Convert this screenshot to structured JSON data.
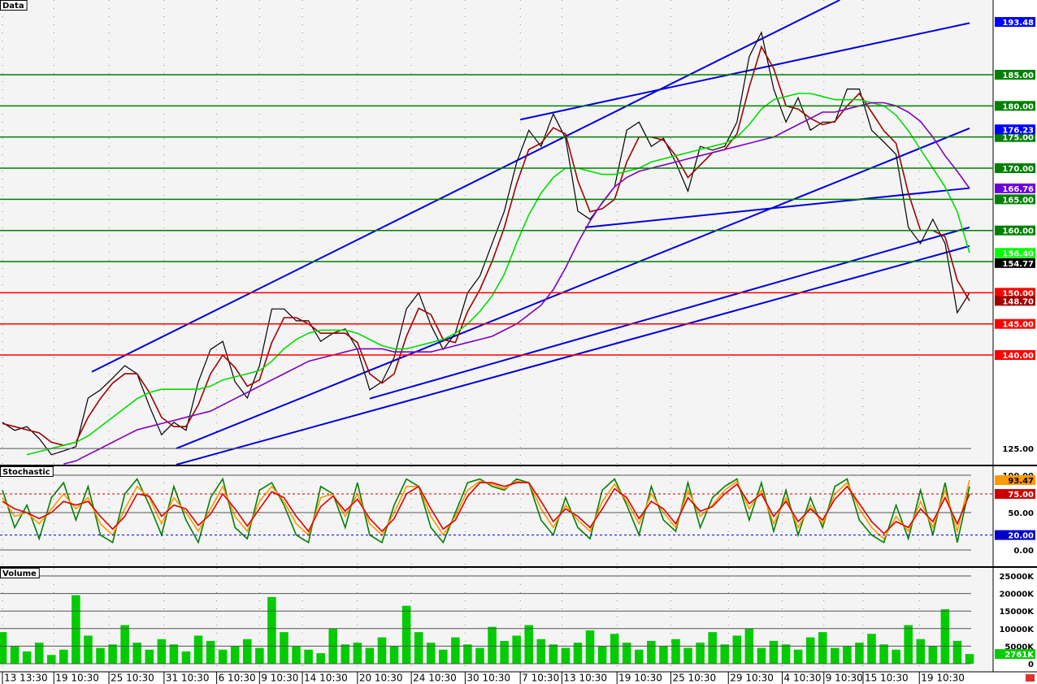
{
  "chart_data": [
    {
      "type": "line",
      "title": "Data",
      "xlim": [
        0,
        79
      ],
      "ylim": [
        122.4,
        197
      ],
      "yticks": [
        {
          "value": 185,
          "label": "185.00",
          "color": "#008000"
        },
        {
          "value": 180,
          "label": "180.00",
          "color": "#008000"
        },
        {
          "value": 175,
          "label": "175.00",
          "color": "#008000"
        },
        {
          "value": 170,
          "label": "170.00",
          "color": "#008000"
        },
        {
          "value": 165,
          "label": "165.00",
          "color": "#008000"
        },
        {
          "value": 160,
          "label": "160.00",
          "color": "#008000"
        },
        {
          "value": 150,
          "label": "150.00",
          "color": "#ff0000"
        },
        {
          "value": 145,
          "label": "145.00",
          "color": "#ff0000"
        },
        {
          "value": 140,
          "label": "140.00",
          "color": "#ff0000"
        },
        {
          "value": 125,
          "label": "125.00"
        }
      ],
      "levels": [
        {
          "value": 155,
          "color": "#008000"
        }
      ],
      "markers": [
        {
          "value": 193.48,
          "color": "#0000ff"
        },
        {
          "value": 176.23,
          "color": "#0000ff"
        },
        {
          "value": 166.76,
          "color": "#6a00e0"
        },
        {
          "value": 156.4,
          "label": "156.40",
          "color": "#00ff00"
        },
        {
          "value": 154.77,
          "color": "#000000"
        },
        {
          "value": 148.7,
          "label": "148.70",
          "color": "#a00000"
        }
      ],
      "trendlines": [
        {
          "x": [
            7.3,
            68.4
          ],
          "values": [
            137.3,
            197
          ]
        },
        {
          "x": [
            42.3,
            79
          ],
          "values": [
            177.8,
            193.3
          ]
        },
        {
          "x": [
            14.2,
            79
          ],
          "values": [
            125,
            176.4
          ]
        },
        {
          "x": [
            47.6,
            79
          ],
          "values": [
            160.5,
            166.8
          ]
        },
        {
          "x": [
            30,
            79
          ],
          "values": [
            133,
            160.5
          ]
        },
        {
          "x": [
            14.2,
            79
          ],
          "values": [
            122.4,
            157.5
          ]
        }
      ],
      "trend_color": "#0000dd",
      "series": [
        {
          "color": "#000000",
          "values": [
            129.2,
            127.9,
            128.5,
            126.6,
            124,
            124.6,
            125.3,
            133.1,
            134.4,
            136.3,
            138.3,
            137,
            131.8,
            127.2,
            129.2,
            127.9,
            135.7,
            140.9,
            142.2,
            135.7,
            133.1,
            138.3,
            147.4,
            147.4,
            145.5,
            145.5,
            142.2,
            143.5,
            144.2,
            140.9,
            134.4,
            135.7,
            139.6,
            147.4,
            150,
            144.8,
            140.9,
            143.5,
            150,
            152.7,
            157.9,
            163.1,
            170.9,
            176.1,
            173.5,
            178.7,
            174.8,
            163.1,
            161.8,
            164.4,
            167,
            176.1,
            177.4,
            173.5,
            174.8,
            170.9,
            166.3,
            173.5,
            172.9,
            173.5,
            177.4,
            187.9,
            191.8,
            182.7,
            177.4,
            181.3,
            176.1,
            177.4,
            177.4,
            182.7,
            182.7,
            176.1,
            174.2,
            172.2,
            160.5,
            157.9,
            161.8,
            157.9,
            146.8,
            150
          ]
        },
        {
          "color": "#a00000",
          "values": [
            129,
            128.5,
            128,
            127.5,
            126,
            125.5,
            126,
            130,
            133,
            135.5,
            137,
            137,
            134,
            130,
            128.5,
            128.5,
            132,
            137,
            140,
            138,
            135,
            136,
            142,
            146,
            146,
            145,
            143.5,
            143.5,
            143.5,
            142,
            137,
            135.5,
            137,
            143,
            147.5,
            146.5,
            142.5,
            142,
            147,
            150.5,
            155,
            160.5,
            167.5,
            173,
            174,
            176.5,
            175.5,
            168,
            163,
            163.5,
            165,
            171,
            175,
            175,
            174.5,
            172,
            168.5,
            170.5,
            172.5,
            173,
            175.5,
            183,
            189.5,
            186,
            180,
            179.5,
            178,
            177,
            177.5,
            180,
            182,
            179,
            176,
            174,
            166,
            160,
            160,
            159,
            152,
            148.7
          ]
        },
        {
          "color": "#00dd00",
          "values": [
            null,
            null,
            124,
            124.5,
            125,
            125.5,
            126,
            127,
            128.5,
            130,
            131.5,
            133,
            134,
            134.5,
            134.5,
            134.5,
            134.5,
            135,
            136,
            136.5,
            137,
            137.5,
            139,
            141,
            142.5,
            143.5,
            144,
            144,
            144,
            143.5,
            142.5,
            141.5,
            141,
            141,
            141.5,
            142,
            142.5,
            143.5,
            145,
            147,
            149.5,
            153,
            158,
            162.5,
            166,
            168.5,
            170,
            170,
            169.5,
            169,
            169,
            169.5,
            170,
            171,
            171.5,
            172,
            172.5,
            173,
            173.5,
            174,
            175,
            177,
            179.5,
            181,
            181.5,
            182,
            182,
            181.5,
            181,
            181,
            181,
            180.5,
            180,
            178.5,
            176,
            173,
            170,
            167,
            163,
            156.4
          ]
        },
        {
          "color": "#8000c0",
          "values": [
            null,
            null,
            null,
            null,
            null,
            122.5,
            123,
            124,
            125,
            126,
            127,
            128,
            128.5,
            129,
            129.5,
            130,
            130.5,
            131,
            132,
            133,
            134,
            135,
            136,
            137,
            138,
            139,
            139.5,
            140,
            140.5,
            141,
            141,
            141,
            140.5,
            140.5,
            140.5,
            140.5,
            141,
            141.5,
            142,
            142.5,
            143,
            144,
            145,
            146.5,
            148,
            150.5,
            154,
            158,
            161.5,
            164.5,
            167,
            168.5,
            169.5,
            170,
            170.5,
            171,
            171.5,
            172,
            172.5,
            173,
            173.5,
            174,
            174.5,
            175,
            176,
            177,
            178,
            179,
            179,
            179.5,
            180,
            180.5,
            180.5,
            180,
            179,
            177.5,
            175,
            172,
            169.5,
            166.76
          ]
        }
      ]
    },
    {
      "type": "line",
      "title": "Stochastic",
      "xlim": [
        0,
        79
      ],
      "ylim": [
        -21.7,
        112
      ],
      "yticks": [
        {
          "value": 100,
          "label": "100.00"
        },
        {
          "value": 50,
          "label": "50.00"
        },
        {
          "value": 0,
          "label": "0.00"
        }
      ],
      "markers": [
        {
          "value": 93.47,
          "color": "#ff9900"
        },
        {
          "value": 75,
          "label": "75.00",
          "color": "#cc0000",
          "dashed": true
        },
        {
          "value": 20,
          "label": "20.00",
          "color": "#0000cc",
          "dashed": true
        }
      ],
      "series": [
        {
          "color": "#008000",
          "values": [
            80,
            30,
            60,
            15,
            70,
            90,
            40,
            85,
            20,
            10,
            75,
            95,
            60,
            20,
            85,
            40,
            10,
            70,
            95,
            30,
            15,
            80,
            90,
            60,
            20,
            10,
            85,
            75,
            30,
            90,
            20,
            10,
            60,
            95,
            85,
            30,
            10,
            50,
            90,
            95,
            85,
            80,
            95,
            90,
            40,
            20,
            70,
            30,
            15,
            80,
            95,
            60,
            20,
            85,
            40,
            25,
            90,
            30,
            70,
            85,
            95,
            40,
            90,
            25,
            80,
            20,
            70,
            30,
            85,
            95,
            40,
            20,
            10,
            60,
            15,
            80,
            20,
            90,
            10,
            85
          ]
        },
        {
          "color": "#ff9900",
          "values": [
            70,
            45,
            50,
            35,
            55,
            75,
            55,
            70,
            35,
            20,
            55,
            85,
            70,
            35,
            70,
            50,
            25,
            55,
            85,
            45,
            25,
            65,
            85,
            65,
            35,
            20,
            70,
            75,
            45,
            75,
            35,
            20,
            50,
            85,
            85,
            45,
            20,
            45,
            80,
            92,
            88,
            82,
            92,
            90,
            55,
            30,
            60,
            40,
            25,
            65,
            88,
            65,
            35,
            75,
            50,
            30,
            80,
            45,
            60,
            80,
            92,
            55,
            80,
            35,
            70,
            30,
            60,
            35,
            75,
            90,
            55,
            30,
            15,
            45,
            25,
            65,
            30,
            80,
            25,
            93.47
          ]
        },
        {
          "color": "#dd0000",
          "values": [
            65,
            55,
            50,
            42,
            50,
            65,
            60,
            65,
            45,
            28,
            45,
            75,
            72,
            45,
            60,
            55,
            33,
            48,
            75,
            55,
            32,
            55,
            78,
            70,
            45,
            25,
            58,
            72,
            52,
            68,
            42,
            25,
            42,
            75,
            85,
            55,
            28,
            40,
            72,
            90,
            90,
            85,
            90,
            90,
            65,
            38,
            55,
            45,
            30,
            55,
            82,
            70,
            42,
            65,
            55,
            35,
            70,
            52,
            58,
            75,
            88,
            62,
            75,
            45,
            65,
            38,
            55,
            40,
            68,
            85,
            62,
            38,
            22,
            38,
            30,
            55,
            38,
            70,
            35,
            75
          ]
        }
      ]
    },
    {
      "type": "bar",
      "title": "Volume",
      "xlim": [
        0,
        79
      ],
      "ylim": [
        -2300,
        27300
      ],
      "yticks": [
        {
          "value": 25000,
          "label": "25000K"
        },
        {
          "value": 20000,
          "label": "20000K"
        },
        {
          "value": 15000,
          "label": "15000K"
        },
        {
          "value": 10000,
          "label": "10000K"
        },
        {
          "value": 5000,
          "label": "5000K"
        },
        0
      ],
      "markers": [
        {
          "value": 2761,
          "label": "2761K",
          "color": "#00cc00"
        }
      ],
      "color": "#00cc00",
      "values": [
        9000,
        5000,
        3500,
        6000,
        2500,
        4000,
        19500,
        8000,
        4500,
        5500,
        11000,
        6000,
        4000,
        7000,
        5500,
        3500,
        8000,
        6500,
        4000,
        5000,
        7000,
        4500,
        19000,
        9000,
        5000,
        4000,
        3000,
        10000,
        5500,
        6000,
        4500,
        7500,
        5000,
        16500,
        9000,
        6000,
        4000,
        7500,
        5500,
        4500,
        10500,
        6500,
        8000,
        11000,
        7000,
        5500,
        4500,
        6000,
        9500,
        5000,
        8500,
        6000,
        4000,
        6500,
        5000,
        7000,
        4500,
        6000,
        9000,
        5500,
        8000,
        10000,
        4500,
        6500,
        5500,
        4000,
        7500,
        9000,
        4500,
        5000,
        6000,
        8500,
        5500,
        4000,
        11000,
        7000,
        5000,
        15500,
        6500,
        2761
      ],
      "xticks": [
        {
          "value": 0,
          "label": "13 13:30"
        },
        {
          "value": 4.2,
          "label": "19 10:30"
        },
        {
          "value": 8.7,
          "label": "25 10:30"
        },
        {
          "value": 13.2,
          "label": "31 10:30"
        },
        {
          "value": 17.5,
          "label": "6 10:30"
        },
        {
          "value": 21,
          "label": "9 10:30"
        },
        {
          "value": 24.5,
          "label": "14 10:30"
        },
        {
          "value": 29,
          "label": "20 10:30"
        },
        {
          "value": 33.4,
          "label": "24 10:30"
        },
        {
          "value": 37.8,
          "label": "30 10:30"
        },
        {
          "value": 42.3,
          "label": "7 10:30"
        },
        {
          "value": 45.7,
          "label": "13 10:30"
        },
        {
          "value": 50.2,
          "label": "19 10:30"
        },
        {
          "value": 54.6,
          "label": "25 10:30"
        },
        {
          "value": 59.3,
          "label": "29 10:30"
        },
        {
          "value": 63.7,
          "label": "4 10:30"
        },
        {
          "value": 67.1,
          "label": "9 10:30"
        },
        {
          "value": 70.3,
          "label": "15 10:30"
        },
        {
          "value": 74.9,
          "label": "19 10:30"
        }
      ]
    }
  ]
}
